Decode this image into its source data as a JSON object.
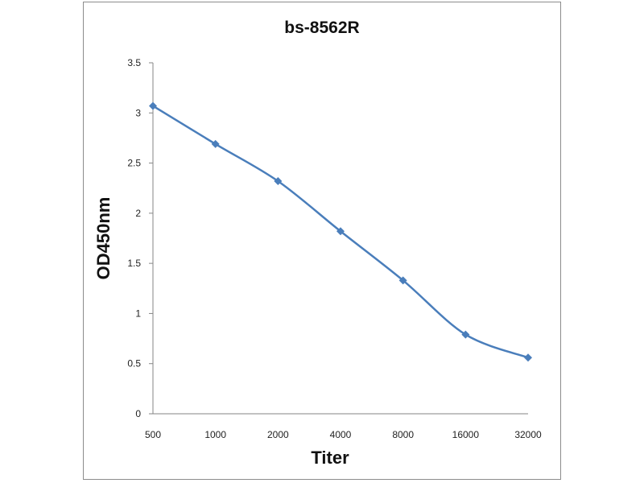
{
  "chart_data": {
    "type": "line",
    "title": "bs-8562R",
    "xlabel": "Titer",
    "ylabel": "OD450nm",
    "categories": [
      "500",
      "1000",
      "2000",
      "4000",
      "8000",
      "16000",
      "32000"
    ],
    "series": [
      {
        "values": [
          3.07,
          2.69,
          2.32,
          1.82,
          1.33,
          0.79,
          0.56
        ]
      }
    ],
    "ylim": [
      0,
      3.5
    ],
    "yticks": [
      "0",
      "0.5",
      "1",
      "1.5",
      "2",
      "2.5",
      "3",
      "3.5"
    ],
    "grid": false,
    "legend": "none",
    "colors": {
      "line": "#4a7ebb",
      "axis": "#868686"
    }
  }
}
